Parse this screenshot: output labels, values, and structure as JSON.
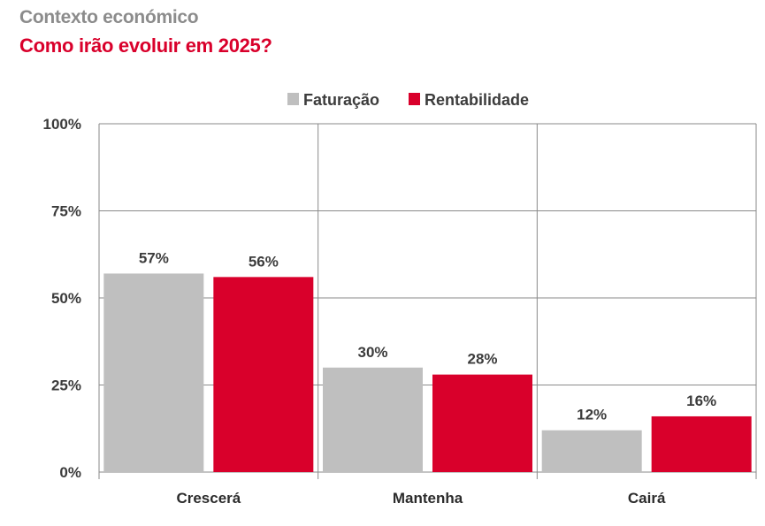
{
  "header": {
    "kicker": "Contexto económico",
    "headline": "Como irão evoluir em 2025?"
  },
  "colors": {
    "faturacao": "#bfbfbf",
    "rentabilidade": "#d9002b",
    "grid": "#8a8a8a"
  },
  "chart_data": {
    "type": "bar",
    "categories": [
      "Crescerá",
      "Mantenha",
      "Cairá"
    ],
    "series": [
      {
        "name": "Faturação",
        "values": [
          57,
          30,
          12
        ],
        "labels": [
          "57%",
          "30%",
          "12%"
        ]
      },
      {
        "name": "Rentabilidade",
        "values": [
          56,
          28,
          16
        ],
        "labels": [
          "56%",
          "28%",
          "16%"
        ]
      }
    ],
    "yticks": [
      "0%",
      "25%",
      "50%",
      "75%",
      "100%"
    ],
    "ylim": [
      0,
      100
    ],
    "grid": true,
    "legend": "top-center"
  }
}
